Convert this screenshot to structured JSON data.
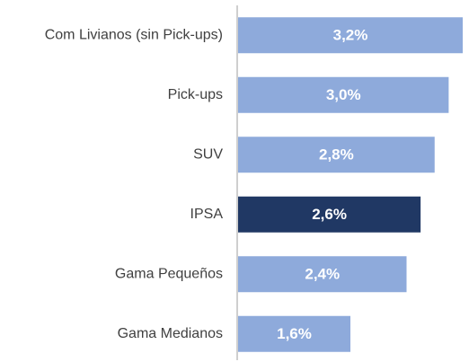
{
  "chart_data": {
    "type": "bar",
    "orientation": "horizontal",
    "categories": [
      "Com Livianos (sin Pick-ups)",
      "Pick-ups",
      "SUV",
      "IPSA",
      "Gama Pequeños",
      "Gama Medianos"
    ],
    "values": [
      3.2,
      3.0,
      2.8,
      2.6,
      2.4,
      1.6
    ],
    "value_labels": [
      "3,2%",
      "3,0%",
      "2,8%",
      "2,6%",
      "2,4%",
      "1,6%"
    ],
    "colors": [
      "#8eaadb",
      "#8eaadb",
      "#8eaadb",
      "#203864",
      "#8eaadb",
      "#8eaadb"
    ]
  }
}
